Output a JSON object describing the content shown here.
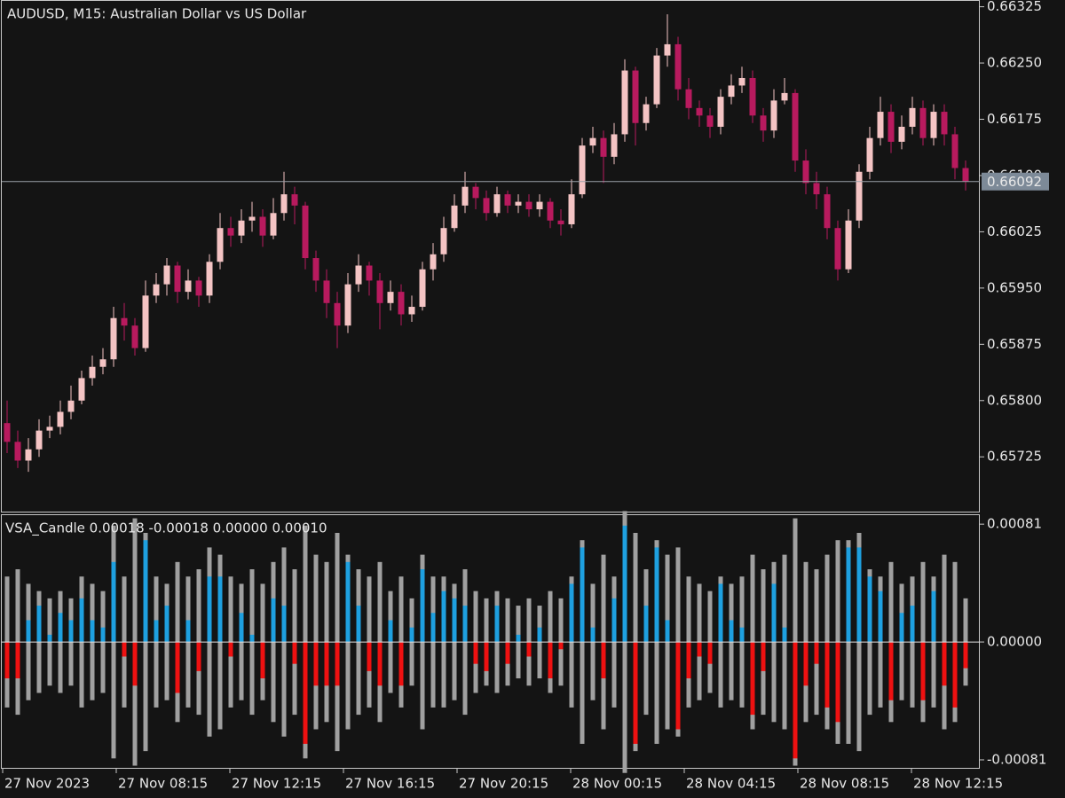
{
  "chart_data": [
    {
      "type": "candlestick",
      "title": "AUDUSD, M15:  Australian Dollar vs US Dollar",
      "up_color": "#f4c4c4",
      "down_color": "#b81a5e",
      "open": [
        0.6577,
        0.65745,
        0.6572,
        0.65735,
        0.6576,
        0.65765,
        0.65785,
        0.658,
        0.6583,
        0.65845,
        0.65855,
        0.6591,
        0.659,
        0.6587,
        0.6594,
        0.65955,
        0.6598,
        0.65945,
        0.6596,
        0.6594,
        0.65985,
        0.6603,
        0.6602,
        0.6604,
        0.66045,
        0.6602,
        0.6605,
        0.66075,
        0.6606,
        0.6599,
        0.6596,
        0.6593,
        0.659,
        0.65955,
        0.6598,
        0.6596,
        0.6593,
        0.65945,
        0.65915,
        0.65925,
        0.65975,
        0.65995,
        0.6603,
        0.6606,
        0.66085,
        0.6607,
        0.6605,
        0.66075,
        0.6606,
        0.66065,
        0.66055,
        0.66065,
        0.6604,
        0.66035,
        0.66075,
        0.6614,
        0.6615,
        0.66125,
        0.66155,
        0.6624,
        0.6617,
        0.66195,
        0.6626,
        0.66275,
        0.66215,
        0.6619,
        0.6618,
        0.66165,
        0.66205,
        0.6622,
        0.6623,
        0.6618,
        0.6616,
        0.662,
        0.6621,
        0.6612,
        0.6609,
        0.66075,
        0.6603,
        0.65975,
        0.6604,
        0.66105,
        0.6615,
        0.66185,
        0.66145,
        0.66165,
        0.6619,
        0.6615,
        0.66185,
        0.66155,
        0.6611
      ],
      "high": [
        0.658,
        0.6576,
        0.6575,
        0.65775,
        0.6578,
        0.658,
        0.6582,
        0.6584,
        0.6586,
        0.6587,
        0.65925,
        0.6593,
        0.6591,
        0.6596,
        0.6597,
        0.6599,
        0.65985,
        0.65975,
        0.65965,
        0.65995,
        0.6605,
        0.66045,
        0.66055,
        0.66065,
        0.66055,
        0.6607,
        0.66105,
        0.66085,
        0.66065,
        0.66,
        0.65975,
        0.65945,
        0.6597,
        0.65995,
        0.65985,
        0.6597,
        0.6596,
        0.65955,
        0.6594,
        0.65985,
        0.6601,
        0.66045,
        0.66075,
        0.66105,
        0.6609,
        0.6608,
        0.66085,
        0.6608,
        0.66075,
        0.66075,
        0.66075,
        0.6607,
        0.66055,
        0.66095,
        0.6615,
        0.66165,
        0.6616,
        0.6617,
        0.66255,
        0.66245,
        0.66205,
        0.6627,
        0.66315,
        0.66285,
        0.6623,
        0.662,
        0.6619,
        0.66215,
        0.66235,
        0.66245,
        0.6624,
        0.6619,
        0.66215,
        0.6623,
        0.66215,
        0.66135,
        0.66105,
        0.66085,
        0.6604,
        0.66055,
        0.66115,
        0.66165,
        0.66205,
        0.66195,
        0.6618,
        0.66205,
        0.662,
        0.66195,
        0.66195,
        0.66165,
        0.6612
      ],
      "low": [
        0.6573,
        0.6571,
        0.65705,
        0.65725,
        0.6575,
        0.65755,
        0.65775,
        0.65795,
        0.6582,
        0.65835,
        0.65845,
        0.6588,
        0.6586,
        0.65865,
        0.6593,
        0.6594,
        0.6593,
        0.65935,
        0.65925,
        0.6593,
        0.65975,
        0.66005,
        0.6601,
        0.66025,
        0.66005,
        0.66015,
        0.6604,
        0.66035,
        0.65975,
        0.65945,
        0.6591,
        0.6587,
        0.6589,
        0.65945,
        0.6594,
        0.65895,
        0.6592,
        0.659,
        0.65905,
        0.6592,
        0.6596,
        0.65985,
        0.66025,
        0.6605,
        0.66055,
        0.6604,
        0.66045,
        0.6605,
        0.6605,
        0.66045,
        0.66045,
        0.6603,
        0.6602,
        0.6603,
        0.6607,
        0.6613,
        0.6609,
        0.66115,
        0.66145,
        0.6614,
        0.6616,
        0.6619,
        0.66245,
        0.662,
        0.66175,
        0.66165,
        0.6615,
        0.66155,
        0.66195,
        0.6621,
        0.6617,
        0.66145,
        0.6615,
        0.66195,
        0.66105,
        0.66075,
        0.66055,
        0.66015,
        0.6596,
        0.6597,
        0.6603,
        0.66095,
        0.6614,
        0.6613,
        0.66135,
        0.66155,
        0.6614,
        0.6614,
        0.6614,
        0.66095,
        0.6608
      ],
      "close": [
        0.65745,
        0.6572,
        0.65735,
        0.6576,
        0.65765,
        0.65785,
        0.658,
        0.6583,
        0.65845,
        0.65855,
        0.6591,
        0.659,
        0.6587,
        0.6594,
        0.65955,
        0.6598,
        0.65945,
        0.6596,
        0.6594,
        0.65985,
        0.6603,
        0.6602,
        0.6604,
        0.66045,
        0.6602,
        0.6605,
        0.66075,
        0.6606,
        0.6599,
        0.6596,
        0.6593,
        0.659,
        0.65955,
        0.6598,
        0.6596,
        0.6593,
        0.65945,
        0.65915,
        0.65925,
        0.65975,
        0.65995,
        0.6603,
        0.6606,
        0.66085,
        0.6607,
        0.6605,
        0.66075,
        0.6606,
        0.66065,
        0.66055,
        0.66065,
        0.6604,
        0.66035,
        0.66075,
        0.6614,
        0.6615,
        0.66125,
        0.66155,
        0.6624,
        0.6617,
        0.66195,
        0.6626,
        0.66275,
        0.66215,
        0.6619,
        0.6618,
        0.66165,
        0.66205,
        0.6622,
        0.6623,
        0.6618,
        0.6616,
        0.662,
        0.6621,
        0.6612,
        0.6609,
        0.66075,
        0.6603,
        0.65975,
        0.6604,
        0.66105,
        0.6615,
        0.66185,
        0.66145,
        0.66165,
        0.6619,
        0.6615,
        0.66185,
        0.66155,
        0.6611,
        0.66092
      ],
      "current_price": {
        "value": 0.66092,
        "label": "0.66092"
      },
      "ylim": [
        0.65652,
        0.66334
      ],
      "yticks": [
        {
          "value": 0.65725,
          "label": "0.65725"
        },
        {
          "value": 0.658,
          "label": "0.65800"
        },
        {
          "value": 0.65875,
          "label": "0.65875"
        },
        {
          "value": 0.6595,
          "label": "0.65950"
        },
        {
          "value": 0.66025,
          "label": "0.66025"
        },
        {
          "value": 0.661,
          "label": "0.66100"
        },
        {
          "value": 0.66175,
          "label": "0.66175"
        },
        {
          "value": 0.6625,
          "label": "0.66250"
        },
        {
          "value": 0.66325,
          "label": "0.66325"
        }
      ],
      "x_labels": [
        "27 Nov 2023",
        "27 Nov 08:15",
        "27 Nov 12:15",
        "27 Nov 16:15",
        "27 Nov 20:15",
        "28 Nov 00:15",
        "28 Nov 04:15",
        "28 Nov 08:15",
        "28 Nov 12:15"
      ]
    },
    {
      "type": "vsa",
      "title": "VSA_Candle 0.00018 -0.00018 0.00000 0.00010",
      "range_color": "#a0a0a0",
      "up_color": "#1ea0e0",
      "down_color": "#ee1111",
      "range": [
        0.00045,
        0.0005,
        0.0004,
        0.00035,
        0.0003,
        0.00035,
        0.0003,
        0.00045,
        0.0004,
        0.00035,
        0.0008,
        0.00045,
        0.00085,
        0.00075,
        0.00045,
        0.0004,
        0.00055,
        0.00045,
        0.0005,
        0.00065,
        0.0006,
        0.00045,
        0.0004,
        0.0005,
        0.0004,
        0.00055,
        0.00065,
        0.0005,
        0.0008,
        0.0006,
        0.00055,
        0.00075,
        0.0006,
        0.0005,
        0.00045,
        0.00055,
        0.00035,
        0.00045,
        0.0003,
        0.0006,
        0.00045,
        0.00045,
        0.0004,
        0.0005,
        0.00035,
        0.0003,
        0.00035,
        0.0003,
        0.00025,
        0.0003,
        0.00025,
        0.00035,
        0.0003,
        0.00045,
        0.0007,
        0.0004,
        0.0006,
        0.00045,
        0.0009,
        0.00075,
        0.0005,
        0.0007,
        0.0006,
        0.00065,
        0.00045,
        0.0004,
        0.00035,
        0.00045,
        0.0004,
        0.00045,
        0.0006,
        0.0005,
        0.00055,
        0.0006,
        0.00085,
        0.00055,
        0.0005,
        0.0006,
        0.0007,
        0.0007,
        0.00075,
        0.0005,
        0.00045,
        0.00055,
        0.0004,
        0.00045,
        0.00055,
        0.00045,
        0.0006,
        0.00055,
        0.0003
      ],
      "values": [
        -0.00025,
        -0.00025,
        0.00015,
        0.00025,
        5e-05,
        0.0002,
        0.00015,
        0.0003,
        0.00015,
        0.0001,
        0.00055,
        -0.0001,
        -0.0003,
        0.0007,
        0.00015,
        0.00025,
        -0.00035,
        0.00015,
        -0.0002,
        0.00045,
        0.00045,
        -0.0001,
        0.0002,
        5e-05,
        -0.00025,
        0.0003,
        0.00025,
        -0.00015,
        -0.0007,
        -0.0003,
        -0.0003,
        -0.0003,
        0.00055,
        0.00025,
        -0.0002,
        -0.0003,
        0.00015,
        -0.0003,
        0.0001,
        0.0005,
        0.0002,
        0.00035,
        0.0003,
        0.00025,
        -0.00015,
        -0.0002,
        0.00025,
        -0.00015,
        5e-05,
        -0.0001,
        0.0001,
        -0.00025,
        -5e-05,
        0.0004,
        0.00065,
        0.0001,
        -0.00025,
        0.0003,
        0.0008,
        -0.0007,
        0.00025,
        0.00065,
        0.00015,
        -0.0006,
        -0.00025,
        -0.0001,
        -0.00015,
        0.0004,
        0.00015,
        0.0001,
        -0.0005,
        -0.0002,
        0.0004,
        0.0001,
        -0.0008,
        -0.0003,
        -0.00015,
        -0.00045,
        -0.00055,
        0.00065,
        0.00065,
        0.00045,
        0.00035,
        -0.0004,
        0.0002,
        0.00025,
        -0.0004,
        0.00035,
        -0.0003,
        -0.00045,
        -0.00018
      ],
      "ylim": [
        -0.000865,
        0.000878
      ],
      "yticks": [
        {
          "value": 0.00081,
          "label": "0.00081"
        },
        {
          "value": 0,
          "label": "0.00000"
        },
        {
          "value": -0.00081,
          "label": "-0.00081"
        }
      ]
    }
  ]
}
